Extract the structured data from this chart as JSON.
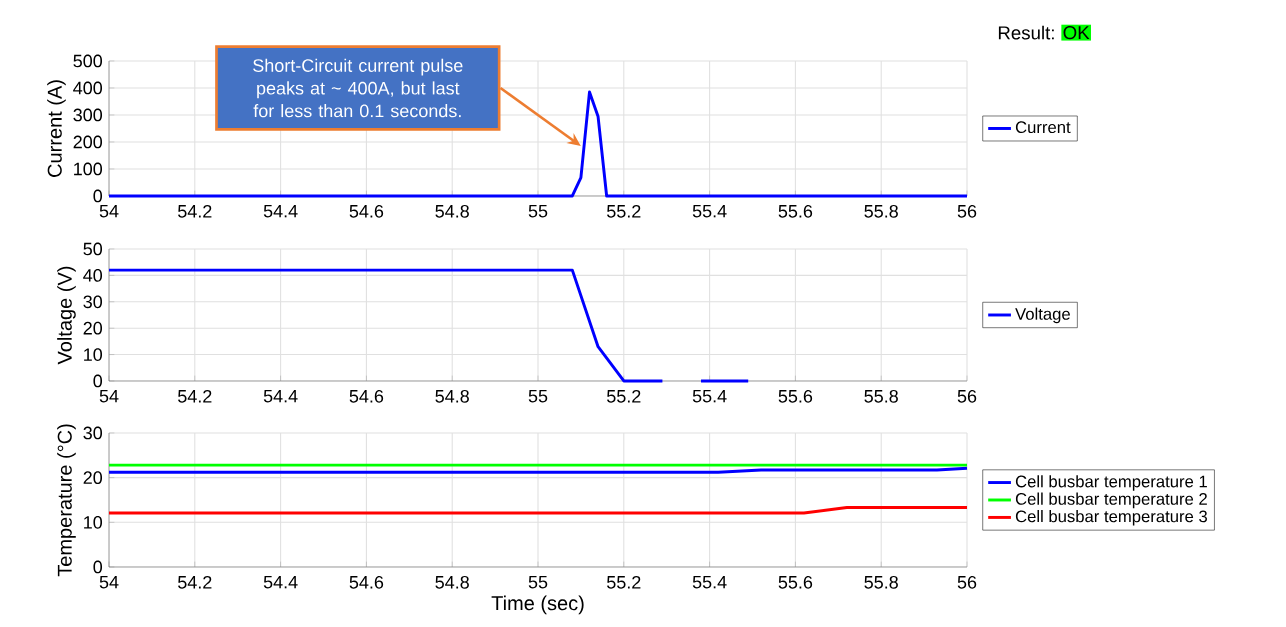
{
  "chart_data": [
    {
      "type": "line",
      "ylabel": "Current (A)",
      "xlim": [
        54,
        56
      ],
      "xticks": [
        54,
        54.2,
        54.4,
        54.6,
        54.8,
        55,
        55.2,
        55.4,
        55.6,
        55.8,
        56
      ],
      "ylim": [
        0,
        500
      ],
      "yticks": [
        0,
        100,
        200,
        300,
        400,
        500
      ],
      "grid": true,
      "legend": "right",
      "line_style": "solid",
      "marker": "none",
      "annotations": [
        "Short-Circuit current pulse peaks at ~ 400A, but last for less than 0.1 seconds.",
        "Result:",
        "OK"
      ],
      "series": [
        {
          "name": "Current",
          "color": "#0000ff",
          "x": [
            54,
            55.08,
            55.1,
            55.12,
            55.14,
            55.16,
            56
          ],
          "values": [
            0,
            0,
            68,
            385,
            294,
            0,
            0
          ]
        }
      ]
    },
    {
      "type": "line",
      "ylabel": "Voltage (V)",
      "xlim": [
        54,
        56
      ],
      "xticks": [
        54,
        54.2,
        54.4,
        54.6,
        54.8,
        55,
        55.2,
        55.4,
        55.6,
        55.8,
        56
      ],
      "ylim": [
        0,
        50
      ],
      "yticks": [
        0,
        10,
        20,
        30,
        40,
        50
      ],
      "grid": true,
      "legend": "right",
      "line_style": "solid",
      "marker": "none",
      "series": [
        {
          "name": "Voltage",
          "color": "#0000ff",
          "x": [
            54,
            55.08,
            55.14,
            55.2,
            55.29,
            55.33,
            55.38,
            55.49
          ],
          "values": [
            42,
            42,
            13,
            0,
            0,
            null,
            0,
            0
          ]
        }
      ]
    },
    {
      "type": "line",
      "xlabel": "Time (sec)",
      "ylabel": "Temperature (°C)",
      "xlim": [
        54,
        56
      ],
      "xticks": [
        54,
        54.2,
        54.4,
        54.6,
        54.8,
        55,
        55.2,
        55.4,
        55.6,
        55.8,
        56
      ],
      "ylim": [
        0,
        30
      ],
      "yticks": [
        0,
        10,
        20,
        30
      ],
      "grid": true,
      "legend": "right",
      "line_style": "solid",
      "marker": "none",
      "series": [
        {
          "name": "Cell busbar temperature 1",
          "color": "#0000ff",
          "x": [
            54,
            55.42,
            55.52,
            55.93,
            56
          ],
          "values": [
            21.2,
            21.2,
            21.7,
            21.7,
            22.1
          ]
        },
        {
          "name": "Cell busbar temperature 2",
          "color": "#00ff00",
          "x": [
            54,
            56
          ],
          "values": [
            22.8,
            22.8
          ]
        },
        {
          "name": "Cell busbar temperature 3",
          "color": "#ff0000",
          "x": [
            54,
            55.62,
            55.72,
            56
          ],
          "values": [
            12.1,
            12.1,
            13.3,
            13.3
          ]
        }
      ]
    }
  ]
}
